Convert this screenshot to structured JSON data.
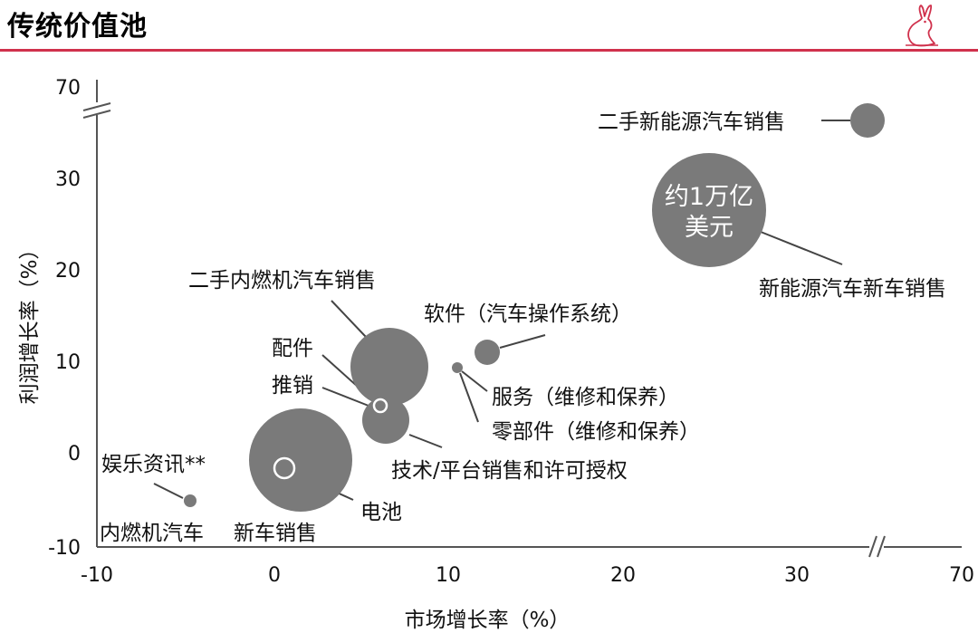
{
  "header": {
    "title": "传统价值池"
  },
  "colors": {
    "accent": "#d0314c",
    "bubble": "#7a7a7a",
    "bubble_hollow_stroke": "#ffffff",
    "axis": "#555555",
    "text": "#111111"
  },
  "chart_data": {
    "type": "scatter",
    "subtype": "bubble",
    "xlabel": "市场增长率（%）",
    "ylabel": "利润增长率（%）",
    "x_ticks": [
      "-10",
      "0",
      "10",
      "20",
      "30",
      "70"
    ],
    "y_ticks": [
      "70",
      "30",
      "20",
      "10",
      "0",
      "-10"
    ],
    "axis_break": {
      "x": "between 30 and 70",
      "y": "between 30 and 70"
    },
    "grid": false,
    "legend": "none",
    "points": [
      {
        "label": "二手新能源汽车销售",
        "x": 34.5,
        "y": 33,
        "size": "small"
      },
      {
        "label": "新能源汽车新车销售",
        "x": 25,
        "y": 27,
        "size": "very large",
        "bubble_text": "约1万亿\n美元"
      },
      {
        "label": "二手内燃机汽车销售",
        "x": 6.7,
        "y": 9.3,
        "size": "large"
      },
      {
        "label": "软件（汽车操作系统）",
        "x": 12.7,
        "y": 11,
        "size": "small"
      },
      {
        "label": "服务（维修和保养）",
        "x": 10.8,
        "y": 9.3,
        "size": "tiny"
      },
      {
        "label": "零部件（维修和保养）",
        "x": 10.8,
        "y": 9.3,
        "size": "tiny"
      },
      {
        "label": "配件",
        "x": 6.1,
        "y": 5.2,
        "size": "hollow"
      },
      {
        "label": "推销",
        "x": 6.1,
        "y": 5.2,
        "size": "hollow"
      },
      {
        "label": "技术/平台销售和许可授权",
        "x": 6.5,
        "y": 3.5,
        "size": "medium"
      },
      {
        "label": "新车销售",
        "x": 1.5,
        "y": -0.7,
        "size": "very large"
      },
      {
        "label": "电池",
        "x": 0.6,
        "y": -1.6,
        "size": "hollow"
      },
      {
        "label": "娱乐资讯**",
        "x": -5,
        "y": -5,
        "size": "tiny"
      },
      {
        "label": "内燃机汽车",
        "x": null,
        "y": null,
        "size": "group"
      }
    ]
  }
}
